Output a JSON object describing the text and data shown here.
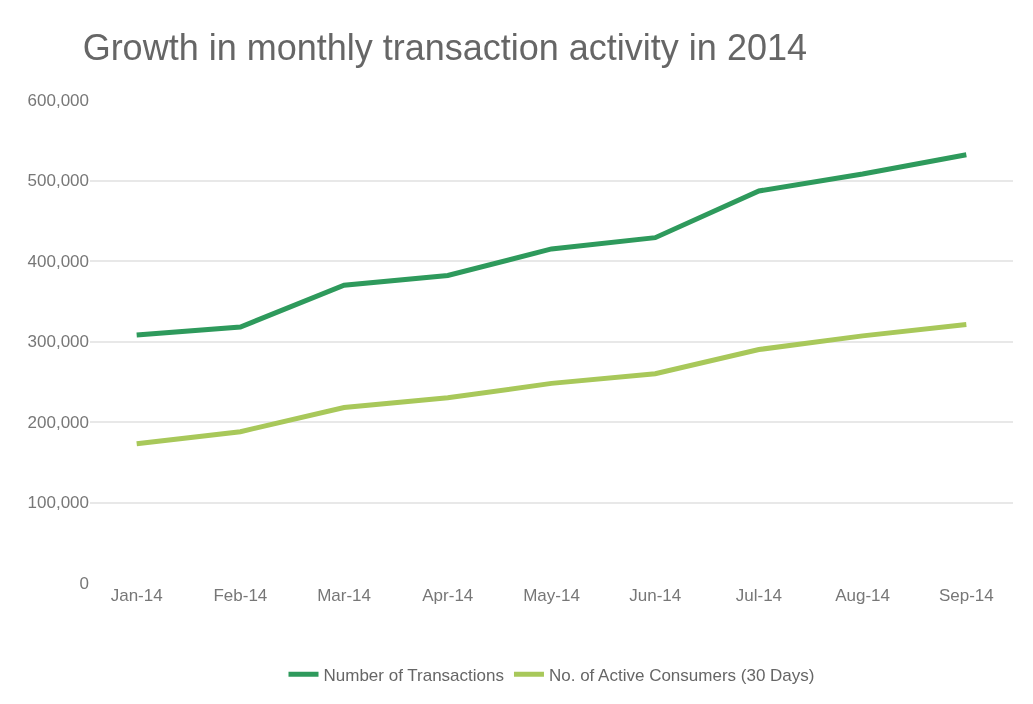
{
  "chart_data": {
    "type": "line",
    "title": "Growth in monthly transaction activity in 2014",
    "categories": [
      "Jan-14",
      "Feb-14",
      "Mar-14",
      "Apr-14",
      "May-14",
      "Jun-14",
      "Jul-14",
      "Aug-14",
      "Sep-14"
    ],
    "series": [
      {
        "name": "Number of Transactions",
        "color": "#2e9a5c",
        "values": [
          308000,
          318000,
          370000,
          382000,
          415000,
          429000,
          487000,
          508000,
          532000
        ]
      },
      {
        "name": "No. of Active Consumers (30 Days)",
        "color": "#a8c85a",
        "values": [
          173000,
          188000,
          218000,
          230000,
          248000,
          260000,
          290000,
          307000,
          321000
        ]
      }
    ],
    "ylim": [
      0,
      600000
    ],
    "yticks": [
      {
        "value": 0,
        "label": "0"
      },
      {
        "value": 100000,
        "label": "100,000"
      },
      {
        "value": 200000,
        "label": "200,000"
      },
      {
        "value": 300000,
        "label": "300,000"
      },
      {
        "value": 400000,
        "label": "400,000"
      },
      {
        "value": 500000,
        "label": "500,000"
      },
      {
        "value": 600000,
        "label": "600,000"
      }
    ],
    "grid": "y",
    "legend": "bottom",
    "marker": "none",
    "line_style": "solid"
  }
}
